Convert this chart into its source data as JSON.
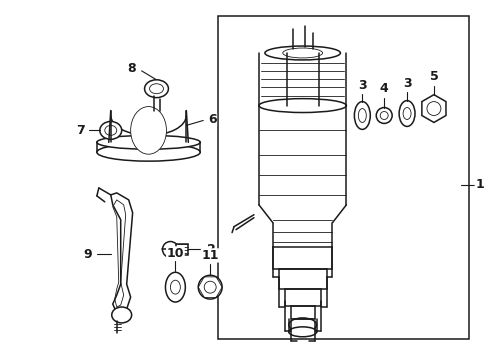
{
  "bg_color": "#ffffff",
  "line_color": "#1a1a1a",
  "line_width": 1.1,
  "thin_line": 0.6,
  "fig_width": 4.89,
  "fig_height": 3.6,
  "dpi": 100
}
